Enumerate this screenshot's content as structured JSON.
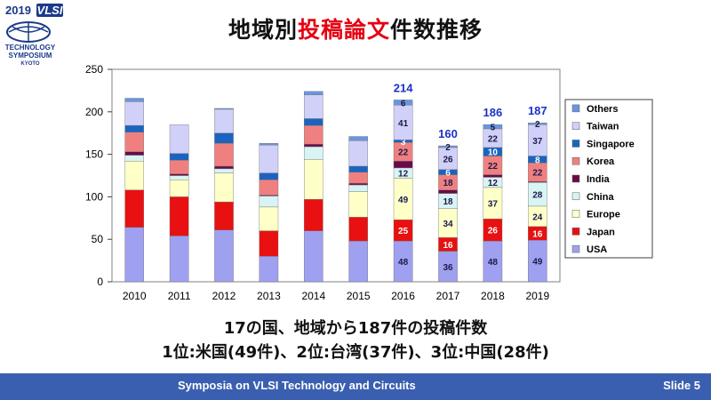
{
  "logo": {
    "year": "2019",
    "brand": "VLSI",
    "line1": "TECHNOLOGY",
    "line2": "SYMPOSIUM",
    "line3": "KYOTO"
  },
  "title": {
    "part1": "地域別",
    "highlight": "投稿論文",
    "part2": "件数推移"
  },
  "summary": {
    "line1": "17の国、地域から187件の投稿件数",
    "line2": "1位:米国(49件)、2位:台湾(37件)、3位:中国(28件)"
  },
  "footer": {
    "text": "Symposia on VLSI Technology and Circuits",
    "slide": "Slide 5"
  },
  "chart_data": {
    "type": "bar",
    "stacked": true,
    "categories": [
      "2010",
      "2011",
      "2012",
      "2013",
      "2014",
      "2015",
      "2016",
      "2017",
      "2018",
      "2019"
    ],
    "ylim": [
      0,
      250
    ],
    "yticks": [
      0,
      50,
      100,
      150,
      200,
      250
    ],
    "grid": false,
    "legend_position": "right",
    "series": [
      {
        "name": "USA",
        "color": "#a0a0f0",
        "values": [
          64,
          54,
          61,
          30,
          60,
          48,
          48,
          36,
          48,
          49
        ]
      },
      {
        "name": "Japan",
        "color": "#e81010",
        "values": [
          44,
          46,
          33,
          30,
          37,
          28,
          25,
          16,
          26,
          16
        ]
      },
      {
        "name": "Europe",
        "color": "#ffffc8",
        "values": [
          34,
          20,
          34,
          28,
          47,
          30,
          49,
          34,
          37,
          24
        ]
      },
      {
        "name": "China",
        "color": "#d8f4f4",
        "values": [
          7,
          5,
          5,
          13,
          15,
          8,
          12,
          18,
          12,
          28
        ]
      },
      {
        "name": "India",
        "color": "#6a0a4a",
        "values": [
          4,
          2,
          3,
          1,
          3,
          2,
          8,
          4,
          3,
          1
        ]
      },
      {
        "name": "Korea",
        "color": "#f08080",
        "values": [
          23,
          16,
          27,
          18,
          22,
          13,
          22,
          18,
          22,
          22
        ]
      },
      {
        "name": "Singapore",
        "color": "#1a64c0",
        "values": [
          8,
          8,
          12,
          8,
          8,
          7,
          3,
          6,
          10,
          8
        ]
      },
      {
        "name": "Taiwan",
        "color": "#d0d0f8",
        "values": [
          28,
          34,
          28,
          33,
          28,
          30,
          41,
          26,
          22,
          37
        ]
      },
      {
        "name": "Others",
        "color": "#6a96e0",
        "values": [
          4,
          0,
          1,
          2,
          4,
          5,
          6,
          2,
          5,
          2
        ]
      }
    ],
    "segment_labels": {
      "USA": [
        "",
        "",
        "",
        "",
        "",
        "",
        "48",
        "36",
        "48",
        "49"
      ],
      "Japan": [
        "",
        "",
        "",
        "",
        "",
        "",
        "25",
        "16",
        "26",
        "16"
      ],
      "Europe": [
        "",
        "",
        "",
        "",
        "",
        "",
        "49",
        "34",
        "37",
        "24"
      ],
      "China": [
        "",
        "",
        "",
        "",
        "",
        "",
        "12",
        "18",
        "12",
        "28"
      ],
      "India": [
        "",
        "",
        "",
        "",
        "",
        "",
        "",
        "",
        "",
        ""
      ],
      "Korea": [
        "",
        "",
        "",
        "",
        "",
        "",
        "22",
        "18",
        "22",
        "22"
      ],
      "Singapore": [
        "",
        "",
        "",
        "",
        "",
        "",
        "3",
        "6",
        "10",
        "8"
      ],
      "Taiwan": [
        "",
        "",
        "",
        "",
        "",
        "",
        "41",
        "26",
        "22",
        "37"
      ],
      "Others": [
        "",
        "",
        "",
        "",
        "",
        "",
        "6",
        "2",
        "5",
        "2"
      ]
    },
    "totals": [
      "",
      "",
      "",
      "",
      "",
      "",
      "214",
      "160",
      "186",
      "187"
    ],
    "legend_order": [
      "Others",
      "Taiwan",
      "Singapore",
      "Korea",
      "India",
      "China",
      "Europe",
      "Japan",
      "USA"
    ]
  }
}
